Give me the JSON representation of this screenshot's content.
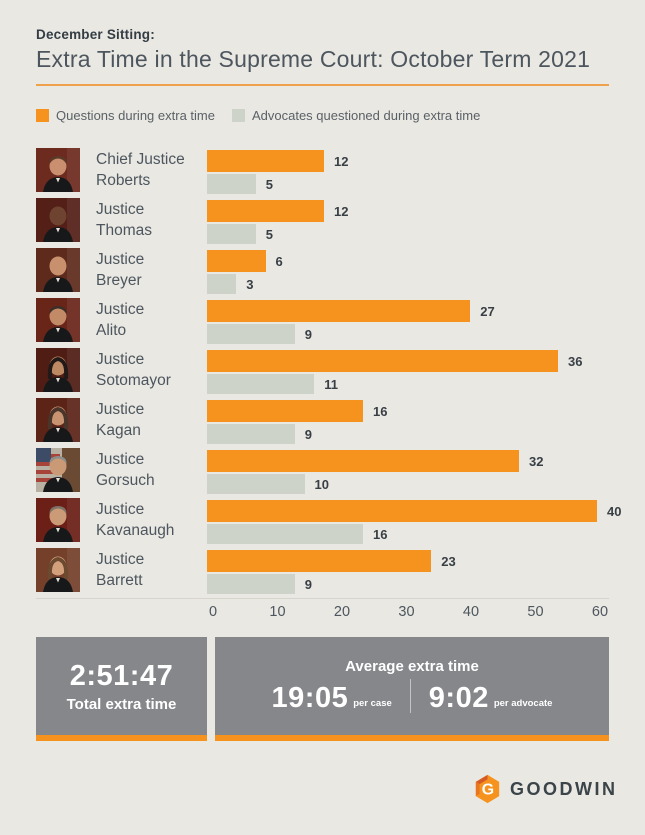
{
  "header": {
    "eyebrow": "December Sitting:",
    "title": "Extra Time in the Supreme Court: October Term 2021"
  },
  "chart_data": {
    "type": "bar",
    "orientation": "horizontal",
    "title": "Extra Time in the Supreme Court: October Term 2021",
    "subtitle": "December Sitting:",
    "categories": [
      "Chief Justice Roberts",
      "Justice Thomas",
      "Justice Breyer",
      "Justice Alito",
      "Justice Sotomayor",
      "Justice Kagan",
      "Justice Gorsuch",
      "Justice Kavanaugh",
      "Justice Barrett"
    ],
    "justice_labels": [
      [
        "Chief Justice",
        "Roberts"
      ],
      [
        "Justice",
        "Thomas"
      ],
      [
        "Justice",
        "Breyer"
      ],
      [
        "Justice",
        "Alito"
      ],
      [
        "Justice",
        "Sotomayor"
      ],
      [
        "Justice",
        "Kagan"
      ],
      [
        "Justice",
        "Gorsuch"
      ],
      [
        "Justice",
        "Kavanaugh"
      ],
      [
        "Justice",
        "Barrett"
      ]
    ],
    "series": [
      {
        "name": "Questions during extra time",
        "color": "#f6921e",
        "values": [
          12,
          12,
          6,
          27,
          36,
          16,
          32,
          40,
          23
        ]
      },
      {
        "name": "Advocates questioned during extra time",
        "color": "#cdd3c9",
        "values": [
          5,
          5,
          3,
          9,
          11,
          9,
          10,
          16,
          9
        ]
      }
    ],
    "xticks": [
      0,
      10,
      20,
      30,
      40,
      50,
      60
    ],
    "xlim": [
      0,
      60
    ],
    "grid": false,
    "legend_position": "top"
  },
  "stats": {
    "total": {
      "value": "2:51:47",
      "label": "Total extra time"
    },
    "average": {
      "heading": "Average extra time",
      "per_case": {
        "value": "19:05",
        "unit": "per case"
      },
      "per_advocate": {
        "value": "9:02",
        "unit": "per advocate"
      }
    }
  },
  "footer": {
    "brand": "GOODWIN"
  },
  "colors": {
    "accent_orange": "#f6921e",
    "bar_gray": "#cdd3c9",
    "box_gray": "#85878b",
    "background": "#e9e8e3",
    "title_rule": "#efa14b",
    "text_dark": "#3a4247"
  }
}
